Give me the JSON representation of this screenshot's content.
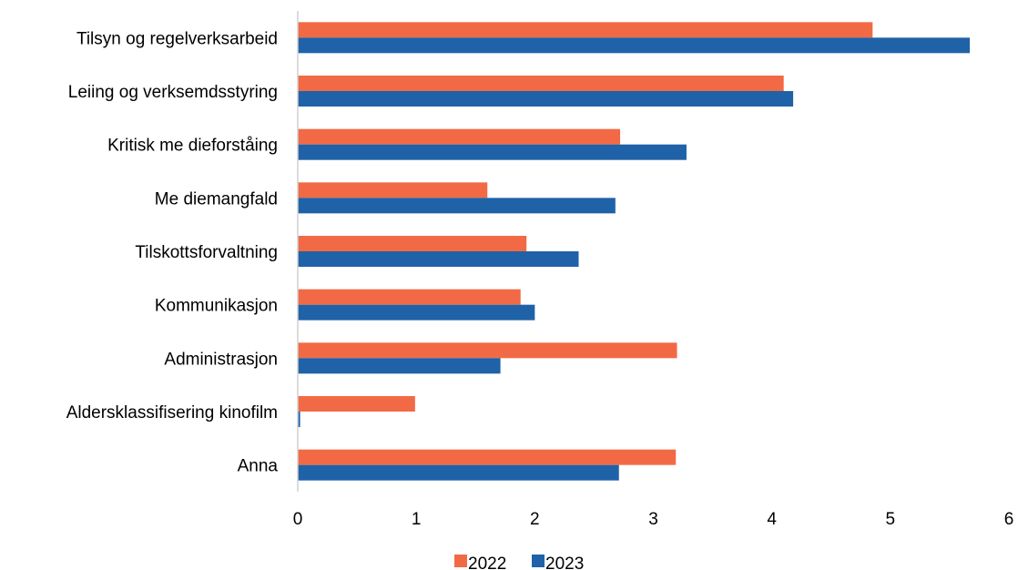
{
  "chart_data": {
    "type": "bar",
    "orientation": "horizontal",
    "categories": [
      "Tilsyn og regelverksarbeid",
      "Leiing og verksemdsstyring",
      "Kritisk me dieforståing",
      "Me diemangfald",
      "Tilskottsforvaltning",
      "Kommunikasjon",
      "Administrasjon",
      "Aldersklassifisering kinofilm",
      "Anna"
    ],
    "series": [
      {
        "name": "2022",
        "color": "#f26a45",
        "values": [
          4.85,
          4.1,
          2.72,
          1.6,
          1.93,
          1.88,
          3.2,
          0.99,
          3.19
        ]
      },
      {
        "name": "2023",
        "color": "#1f62a8",
        "values": [
          5.67,
          4.18,
          3.28,
          2.68,
          2.37,
          2.0,
          1.71,
          0.02,
          2.71
        ]
      }
    ],
    "xlim": [
      0,
      6
    ],
    "x_ticks": [
      "0",
      "1",
      "2",
      "3",
      "4",
      "5",
      "6"
    ],
    "grid": false,
    "legend_position": "bottom-center",
    "title": "",
    "xlabel": "",
    "ylabel": ""
  }
}
